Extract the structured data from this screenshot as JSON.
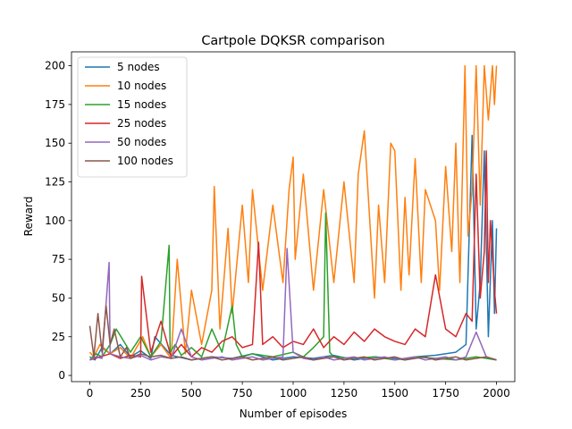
{
  "chart_data": {
    "type": "line",
    "title": "Cartpole DQKSR comparison",
    "xlabel": "Number of episodes",
    "ylabel": "Reward",
    "xlim": [
      -90,
      2090
    ],
    "ylim": [
      -4,
      209
    ],
    "xticks": [
      0,
      250,
      500,
      750,
      1000,
      1250,
      1500,
      1750,
      2000
    ],
    "yticks": [
      0,
      25,
      50,
      75,
      100,
      125,
      150,
      175,
      200
    ],
    "grid": false,
    "legend_position": "upper-left",
    "series": [
      {
        "name": "5 nodes",
        "color": "#1f77b4",
        "x": [
          0,
          25,
          60,
          100,
          150,
          200,
          250,
          300,
          320,
          400,
          500,
          600,
          700,
          800,
          900,
          1000,
          1100,
          1200,
          1300,
          1400,
          1500,
          1550,
          1600,
          1700,
          1800,
          1850,
          1880,
          1900,
          1920,
          1940,
          1960,
          1980,
          1990,
          2000
        ],
        "values": [
          12,
          10,
          18,
          14,
          20,
          12,
          16,
          11,
          25,
          13,
          10,
          12,
          11,
          14,
          10,
          12,
          11,
          13,
          10,
          12,
          11,
          10,
          12,
          13,
          15,
          20,
          155,
          30,
          60,
          145,
          25,
          100,
          40,
          95
        ]
      },
      {
        "name": "10 nodes",
        "color": "#ff7f0e",
        "x": [
          0,
          20,
          50,
          100,
          150,
          200,
          260,
          300,
          350,
          400,
          430,
          470,
          500,
          550,
          600,
          612,
          640,
          680,
          700,
          750,
          780,
          800,
          850,
          900,
          950,
          980,
          1000,
          1010,
          1050,
          1100,
          1150,
          1200,
          1250,
          1300,
          1320,
          1350,
          1400,
          1420,
          1450,
          1480,
          1500,
          1530,
          1550,
          1570,
          1600,
          1630,
          1650,
          1700,
          1720,
          1750,
          1780,
          1800,
          1820,
          1845,
          1860,
          1880,
          1900,
          1920,
          1940,
          1960,
          1980,
          1990,
          2000
        ],
        "values": [
          15,
          12,
          20,
          14,
          18,
          11,
          25,
          12,
          20,
          11,
          75,
          14,
          55,
          20,
          55,
          122,
          30,
          95,
          40,
          110,
          60,
          120,
          55,
          110,
          60,
          120,
          141,
          75,
          130,
          55,
          120,
          60,
          125,
          60,
          130,
          158,
          50,
          110,
          60,
          150,
          145,
          55,
          115,
          65,
          140,
          60,
          120,
          100,
          55,
          135,
          80,
          150,
          60,
          200,
          90,
          120,
          200,
          110,
          200,
          165,
          200,
          175,
          200
        ]
      },
      {
        "name": "15 nodes",
        "color": "#2ca02c",
        "x": [
          0,
          30,
          60,
          100,
          130,
          200,
          250,
          300,
          350,
          390,
          395,
          420,
          450,
          500,
          550,
          600,
          650,
          700,
          720,
          750,
          800,
          900,
          1000,
          1050,
          1100,
          1150,
          1160,
          1180,
          1200,
          1300,
          1400,
          1500,
          1600,
          1700,
          1800,
          1900,
          1950,
          2000
        ],
        "values": [
          10,
          14,
          12,
          20,
          30,
          15,
          25,
          12,
          22,
          84,
          15,
          20,
          13,
          18,
          12,
          30,
          15,
          45,
          20,
          12,
          14,
          12,
          15,
          12,
          18,
          25,
          105,
          15,
          12,
          11,
          12,
          10,
          12,
          11,
          10,
          12,
          11,
          10
        ]
      },
      {
        "name": "25 nodes",
        "color": "#d62728",
        "x": [
          0,
          50,
          100,
          150,
          200,
          250,
          255,
          300,
          350,
          400,
          450,
          500,
          550,
          600,
          650,
          700,
          750,
          800,
          830,
          850,
          900,
          950,
          1000,
          1050,
          1100,
          1150,
          1200,
          1250,
          1300,
          1350,
          1400,
          1450,
          1500,
          1550,
          1600,
          1650,
          1700,
          1750,
          1800,
          1850,
          1880,
          1900,
          1920,
          1940,
          1950,
          1960,
          1970,
          1990,
          2000
        ],
        "values": [
          10,
          12,
          14,
          11,
          13,
          12,
          64,
          15,
          35,
          12,
          20,
          12,
          18,
          15,
          22,
          25,
          18,
          20,
          86,
          20,
          25,
          18,
          22,
          20,
          30,
          18,
          25,
          20,
          28,
          22,
          30,
          25,
          22,
          20,
          30,
          25,
          65,
          30,
          25,
          40,
          35,
          130,
          50,
          80,
          145,
          60,
          100,
          55,
          40
        ]
      },
      {
        "name": "50 nodes",
        "color": "#9467bd",
        "x": [
          0,
          30,
          60,
          95,
          100,
          150,
          200,
          250,
          300,
          350,
          400,
          450,
          500,
          550,
          600,
          650,
          700,
          750,
          800,
          850,
          900,
          950,
          970,
          1000,
          1050,
          1100,
          1150,
          1200,
          1250,
          1300,
          1350,
          1400,
          1450,
          1500,
          1550,
          1600,
          1650,
          1700,
          1750,
          1800,
          1850,
          1900,
          1950,
          2000
        ],
        "values": [
          10,
          12,
          11,
          73,
          14,
          12,
          11,
          13,
          10,
          12,
          11,
          30,
          12,
          10,
          11,
          12,
          10,
          11,
          12,
          10,
          11,
          12,
          82,
          15,
          11,
          10,
          12,
          10,
          11,
          12,
          10,
          11,
          12,
          10,
          11,
          12,
          10,
          11,
          12,
          10,
          12,
          28,
          12,
          10
        ]
      },
      {
        "name": "100 nodes",
        "color": "#8c564b",
        "x": [
          0,
          20,
          40,
          60,
          80,
          100,
          120,
          150,
          180,
          200,
          250,
          300,
          350,
          400,
          450,
          500,
          550,
          600,
          650,
          700,
          750,
          800,
          850,
          900,
          950,
          1000,
          1050,
          1100,
          1150,
          1200,
          1250,
          1300,
          1350,
          1400,
          1450,
          1500,
          1550,
          1600,
          1650,
          1700,
          1750,
          1800,
          1850,
          1900,
          1950,
          2000
        ],
        "values": [
          32,
          12,
          40,
          15,
          45,
          20,
          30,
          12,
          18,
          11,
          14,
          12,
          13,
          11,
          12,
          10,
          11,
          12,
          10,
          11,
          12,
          10,
          11,
          12,
          10,
          11,
          12,
          10,
          11,
          12,
          10,
          11,
          12,
          10,
          11,
          12,
          10,
          11,
          12,
          10,
          11,
          12,
          10,
          11,
          12,
          10
        ]
      }
    ]
  }
}
